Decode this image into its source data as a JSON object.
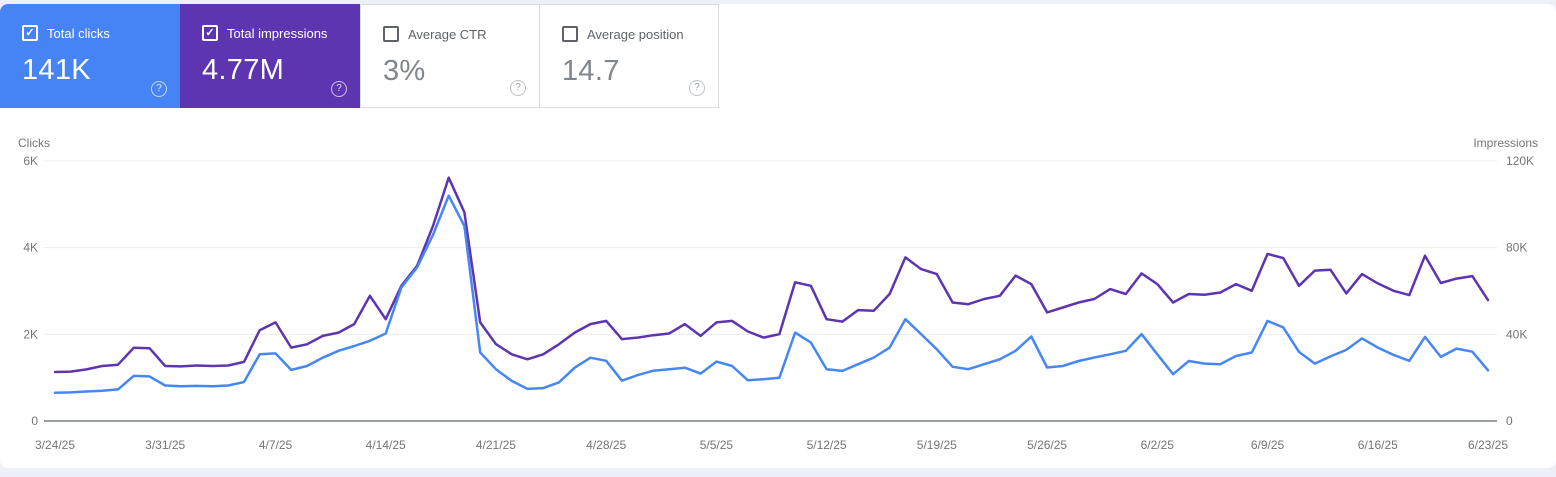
{
  "glyphs": {
    "check": "✓",
    "help": "?"
  },
  "cards": [
    {
      "label": "Total clicks",
      "value": "141K",
      "checked": true,
      "bg": "#4683f4"
    },
    {
      "label": "Total impressions",
      "value": "4.77M",
      "checked": true,
      "bg": "#5e35b1"
    },
    {
      "label": "Average CTR",
      "value": "3%",
      "checked": false,
      "bg": "#ffffff"
    },
    {
      "label": "Average position",
      "value": "14.7",
      "checked": false,
      "bg": "#ffffff"
    }
  ],
  "chart_data": {
    "type": "line",
    "grid": "horizontal",
    "left_axis": {
      "title": "Clicks",
      "max": 6000,
      "ticks": [
        {
          "label": "0",
          "value": 0
        },
        {
          "label": "2K",
          "value": 2000
        },
        {
          "label": "4K",
          "value": 4000
        },
        {
          "label": "6K",
          "value": 6000
        }
      ]
    },
    "right_axis": {
      "title": "Impressions",
      "max": 120000,
      "ticks": [
        {
          "label": "0",
          "value": 0
        },
        {
          "label": "40K",
          "value": 40000
        },
        {
          "label": "80K",
          "value": 80000
        },
        {
          "label": "120K",
          "value": 120000
        }
      ]
    },
    "x_tick_labels": [
      "3/24/25",
      "3/31/25",
      "4/7/25",
      "4/14/25",
      "4/21/25",
      "4/28/25",
      "5/5/25",
      "5/12/25",
      "5/19/25",
      "5/26/25",
      "6/2/25",
      "6/9/25",
      "6/16/25",
      "6/23/25"
    ],
    "dates": [
      "3/24/25",
      "3/25/25",
      "3/26/25",
      "3/27/25",
      "3/28/25",
      "3/29/25",
      "3/30/25",
      "3/31/25",
      "4/1/25",
      "4/2/25",
      "4/3/25",
      "4/4/25",
      "4/5/25",
      "4/6/25",
      "4/7/25",
      "4/8/25",
      "4/9/25",
      "4/10/25",
      "4/11/25",
      "4/12/25",
      "4/13/25",
      "4/14/25",
      "4/15/25",
      "4/16/25",
      "4/17/25",
      "4/18/25",
      "4/19/25",
      "4/20/25",
      "4/21/25",
      "4/22/25",
      "4/23/25",
      "4/24/25",
      "4/25/25",
      "4/26/25",
      "4/27/25",
      "4/28/25",
      "4/29/25",
      "4/30/25",
      "5/1/25",
      "5/2/25",
      "5/3/25",
      "5/4/25",
      "5/5/25",
      "5/6/25",
      "5/7/25",
      "5/8/25",
      "5/9/25",
      "5/10/25",
      "5/11/25",
      "5/12/25",
      "5/13/25",
      "5/14/25",
      "5/15/25",
      "5/16/25",
      "5/17/25",
      "5/18/25",
      "5/19/25",
      "5/20/25",
      "5/21/25",
      "5/22/25",
      "5/23/25",
      "5/24/25",
      "5/25/25",
      "5/26/25",
      "5/27/25",
      "5/28/25",
      "5/29/25",
      "5/30/25",
      "5/31/25",
      "6/1/25",
      "6/2/25",
      "6/3/25",
      "6/4/25",
      "6/5/25",
      "6/6/25",
      "6/7/25",
      "6/8/25",
      "6/9/25",
      "6/10/25",
      "6/11/25",
      "6/12/25",
      "6/13/25",
      "6/14/25",
      "6/15/25",
      "6/16/25",
      "6/17/25",
      "6/18/25",
      "6/19/25",
      "6/20/25",
      "6/21/25",
      "6/22/25",
      "6/23/25"
    ],
    "series": [
      {
        "name": "Clicks",
        "axis": "left",
        "color": "#4687f5",
        "values": [
          650,
          660,
          680,
          700,
          730,
          1040,
          1030,
          820,
          800,
          810,
          800,
          820,
          900,
          1540,
          1560,
          1180,
          1270,
          1460,
          1620,
          1730,
          1850,
          2020,
          3080,
          3550,
          4290,
          5200,
          4500,
          1580,
          1195,
          925,
          740,
          760,
          890,
          1230,
          1460,
          1390,
          930,
          1060,
          1160,
          1195,
          1230,
          1095,
          1370,
          1270,
          940,
          965,
          1000,
          2040,
          1810,
          1195,
          1155,
          1310,
          1465,
          1695,
          2350,
          2005,
          1655,
          1250,
          1195,
          1310,
          1425,
          1620,
          1950,
          1235,
          1270,
          1385,
          1465,
          1540,
          1620,
          2005,
          1540,
          1080,
          1385,
          1325,
          1310,
          1500,
          1580,
          2310,
          2160,
          1595,
          1325,
          1490,
          1640,
          1905,
          1695,
          1525,
          1390,
          1940,
          1480,
          1670,
          1600,
          1170
        ]
      },
      {
        "name": "Impressions",
        "axis": "right",
        "color": "#5e35b1",
        "values": [
          22600,
          22800,
          23800,
          25400,
          26000,
          33800,
          33600,
          25400,
          25200,
          25600,
          25400,
          25600,
          27300,
          41900,
          45500,
          33900,
          35400,
          39300,
          40800,
          44700,
          57800,
          47000,
          62400,
          71700,
          89900,
          112300,
          96300,
          45500,
          35500,
          30800,
          28500,
          30800,
          35400,
          40800,
          44700,
          46200,
          37800,
          38500,
          39600,
          40400,
          44700,
          39300,
          45500,
          46200,
          41300,
          38500,
          40100,
          64000,
          62400,
          47000,
          45900,
          51200,
          50900,
          58600,
          75500,
          70100,
          67800,
          54700,
          53900,
          56300,
          57800,
          67100,
          63200,
          50100,
          52400,
          54700,
          56300,
          60900,
          58600,
          68100,
          63200,
          54700,
          58600,
          58300,
          59300,
          63200,
          60100,
          77100,
          75200,
          62400,
          69400,
          69800,
          58900,
          67800,
          63500,
          60100,
          58100,
          76300,
          63700,
          65700,
          66900,
          55800
        ]
      }
    ]
  }
}
